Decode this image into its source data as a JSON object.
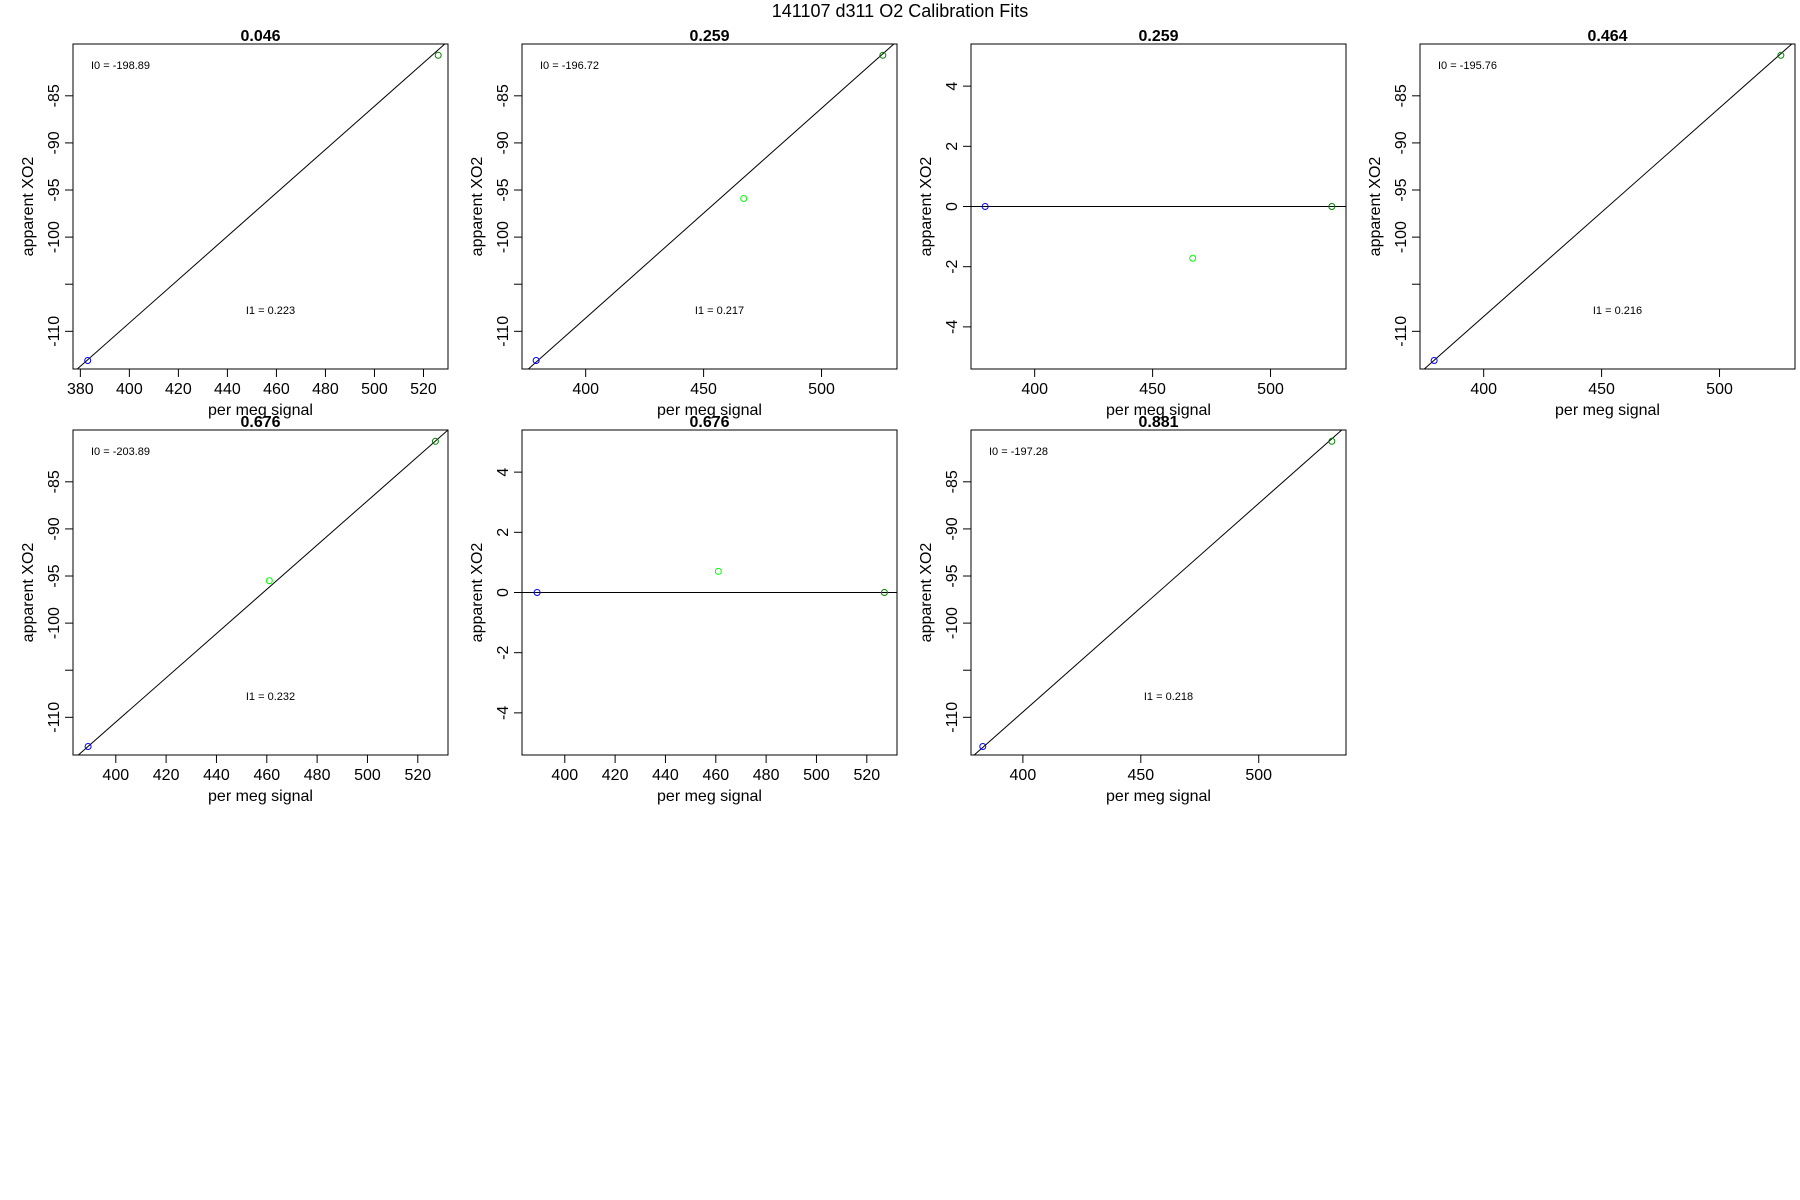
{
  "title": "141107   d311   O2 Calibration Fits",
  "chart_data": [
    {
      "type": "scatter",
      "title": "0.046",
      "xlabel": "per meg signal",
      "ylabel": "apparent XO2",
      "xlim": [
        377,
        530
      ],
      "ylim": [
        -114,
        -79.5
      ],
      "xticks": [
        "380",
        "400",
        "420",
        "440",
        "460",
        "480",
        "500",
        "520"
      ],
      "xtick_values": [
        380,
        400,
        420,
        440,
        460,
        480,
        500,
        520
      ],
      "yticks": [
        "-85",
        "-90",
        "-95",
        "-100",
        "",
        "-110"
      ],
      "ytick_values": [
        -85,
        -90,
        -95,
        -100,
        -105,
        -110
      ],
      "points": [
        {
          "x": 383,
          "y": -113.1,
          "color": "#0000ff"
        },
        {
          "x": 526,
          "y": -80.7,
          "color": "#008000"
        }
      ],
      "fit_line": {
        "x": [
          377,
          530
        ],
        "y": [
          -114.4,
          -79.2
        ]
      },
      "annotations": [
        {
          "label": "I0 =  -198.89",
          "pos": "top-left"
        },
        {
          "label": "I1 =  0.223",
          "pos": "lower-middle"
        }
      ]
    },
    {
      "type": "scatter",
      "title": "0.259",
      "xlabel": "per meg signal",
      "ylabel": "apparent XO2",
      "xlim": [
        373,
        532
      ],
      "ylim": [
        -114,
        -79.5
      ],
      "xticks": [
        "400",
        "450",
        "500"
      ],
      "xtick_values": [
        400,
        450,
        500
      ],
      "yticks": [
        "-85",
        "-90",
        "-95",
        "-100",
        "",
        "-110"
      ],
      "ytick_values": [
        -85,
        -90,
        -95,
        -100,
        -105,
        -110
      ],
      "points": [
        {
          "x": 379,
          "y": -113.1,
          "color": "#0000ff"
        },
        {
          "x": 467,
          "y": -95.9,
          "color": "#00ff00"
        },
        {
          "x": 526,
          "y": -80.7,
          "color": "#008000"
        }
      ],
      "fit_line": {
        "x": [
          373,
          532
        ],
        "y": [
          -114.6,
          -79.2
        ]
      },
      "annotations": [
        {
          "label": "I0 =  -196.72",
          "pos": "top-left"
        },
        {
          "label": "I1 =  0.217",
          "pos": "lower-middle"
        }
      ]
    },
    {
      "type": "scatter",
      "title": "0.259",
      "xlabel": "per meg signal",
      "ylabel": "apparent XO2",
      "xlim": [
        373,
        532
      ],
      "ylim": [
        -5.4,
        5.4
      ],
      "xticks": [
        "400",
        "450",
        "500"
      ],
      "xtick_values": [
        400,
        450,
        500
      ],
      "yticks": [
        "4",
        "2",
        "0",
        "-2",
        "-4"
      ],
      "ytick_values": [
        4,
        2,
        0,
        -2,
        -4
      ],
      "points": [
        {
          "x": 379,
          "y": 0,
          "color": "#0000ff"
        },
        {
          "x": 467,
          "y": -1.72,
          "color": "#00ff00"
        },
        {
          "x": 526,
          "y": 0,
          "color": "#008000"
        }
      ],
      "fit_line": {
        "x": [
          373,
          532
        ],
        "y": [
          0,
          0
        ]
      },
      "annotations": []
    },
    {
      "type": "scatter",
      "title": "0.464",
      "xlabel": "per meg signal",
      "ylabel": "apparent XO2",
      "xlim": [
        373,
        532
      ],
      "ylim": [
        -114,
        -79.5
      ],
      "xticks": [
        "400",
        "450",
        "500"
      ],
      "xtick_values": [
        400,
        450,
        500
      ],
      "yticks": [
        "-85",
        "-90",
        "-95",
        "-100",
        "",
        "-110"
      ],
      "ytick_values": [
        -85,
        -90,
        -95,
        -100,
        -105,
        -110
      ],
      "points": [
        {
          "x": 379,
          "y": -113.1,
          "color": "#0000ff"
        },
        {
          "x": 526,
          "y": -80.7,
          "color": "#008000"
        }
      ],
      "fit_line": {
        "x": [
          373,
          532
        ],
        "y": [
          -114.4,
          -79.2
        ]
      },
      "annotations": [
        {
          "label": "I0 =  -195.76",
          "pos": "top-left"
        },
        {
          "label": "I1 =  0.216",
          "pos": "lower-middle"
        }
      ]
    },
    {
      "type": "scatter",
      "title": "0.676",
      "xlabel": "per meg signal",
      "ylabel": "apparent XO2",
      "xlim": [
        383,
        532
      ],
      "ylim": [
        -114,
        -79.5
      ],
      "xticks": [
        "400",
        "420",
        "440",
        "460",
        "480",
        "500",
        "520"
      ],
      "xtick_values": [
        400,
        420,
        440,
        460,
        480,
        500,
        520
      ],
      "yticks": [
        "-85",
        "-90",
        "-95",
        "-100",
        "",
        "-110"
      ],
      "ytick_values": [
        -85,
        -90,
        -95,
        -100,
        -105,
        -110
      ],
      "points": [
        {
          "x": 389,
          "y": -113.1,
          "color": "#0000ff"
        },
        {
          "x": 461,
          "y": -95.5,
          "color": "#00ff00"
        },
        {
          "x": 527,
          "y": -80.7,
          "color": "#008000"
        }
      ],
      "fit_line": {
        "x": [
          383,
          532
        ],
        "y": [
          -114.5,
          -79.5
        ]
      },
      "annotations": [
        {
          "label": "I0 =  -203.89",
          "pos": "top-left"
        },
        {
          "label": "I1 =  0.232",
          "pos": "lower-middle"
        }
      ]
    },
    {
      "type": "scatter",
      "title": "0.676",
      "xlabel": "per meg signal",
      "ylabel": "apparent XO2",
      "xlim": [
        383,
        532
      ],
      "ylim": [
        -5.4,
        5.4
      ],
      "xticks": [
        "400",
        "420",
        "440",
        "460",
        "480",
        "500",
        "520"
      ],
      "xtick_values": [
        400,
        420,
        440,
        460,
        480,
        500,
        520
      ],
      "yticks": [
        "4",
        "2",
        "0",
        "-2",
        "-4"
      ],
      "ytick_values": [
        4,
        2,
        0,
        -2,
        -4
      ],
      "points": [
        {
          "x": 389,
          "y": 0,
          "color": "#0000ff"
        },
        {
          "x": 461,
          "y": 0.7,
          "color": "#00ff00"
        },
        {
          "x": 527,
          "y": 0,
          "color": "#008000"
        }
      ],
      "fit_line": {
        "x": [
          383,
          532
        ],
        "y": [
          0,
          0
        ]
      },
      "annotations": []
    },
    {
      "type": "scatter",
      "title": "0.881",
      "xlabel": "per meg signal",
      "ylabel": "apparent XO2",
      "xlim": [
        378,
        537
      ],
      "ylim": [
        -114,
        -79.5
      ],
      "xticks": [
        "400",
        "450",
        "500"
      ],
      "xtick_values": [
        400,
        450,
        500
      ],
      "yticks": [
        "-85",
        "-90",
        "-95",
        "-100",
        "",
        "-110"
      ],
      "ytick_values": [
        -85,
        -90,
        -95,
        -100,
        -105,
        -110
      ],
      "points": [
        {
          "x": 383,
          "y": -113.1,
          "color": "#0000ff"
        },
        {
          "x": 531,
          "y": -80.7,
          "color": "#008000"
        }
      ],
      "fit_line": {
        "x": [
          378,
          537
        ],
        "y": [
          -114.3,
          -79.1
        ]
      },
      "annotations": [
        {
          "label": "I0 =  -197.28",
          "pos": "top-left"
        },
        {
          "label": "I1 =  0.218",
          "pos": "lower-middle"
        }
      ]
    }
  ]
}
